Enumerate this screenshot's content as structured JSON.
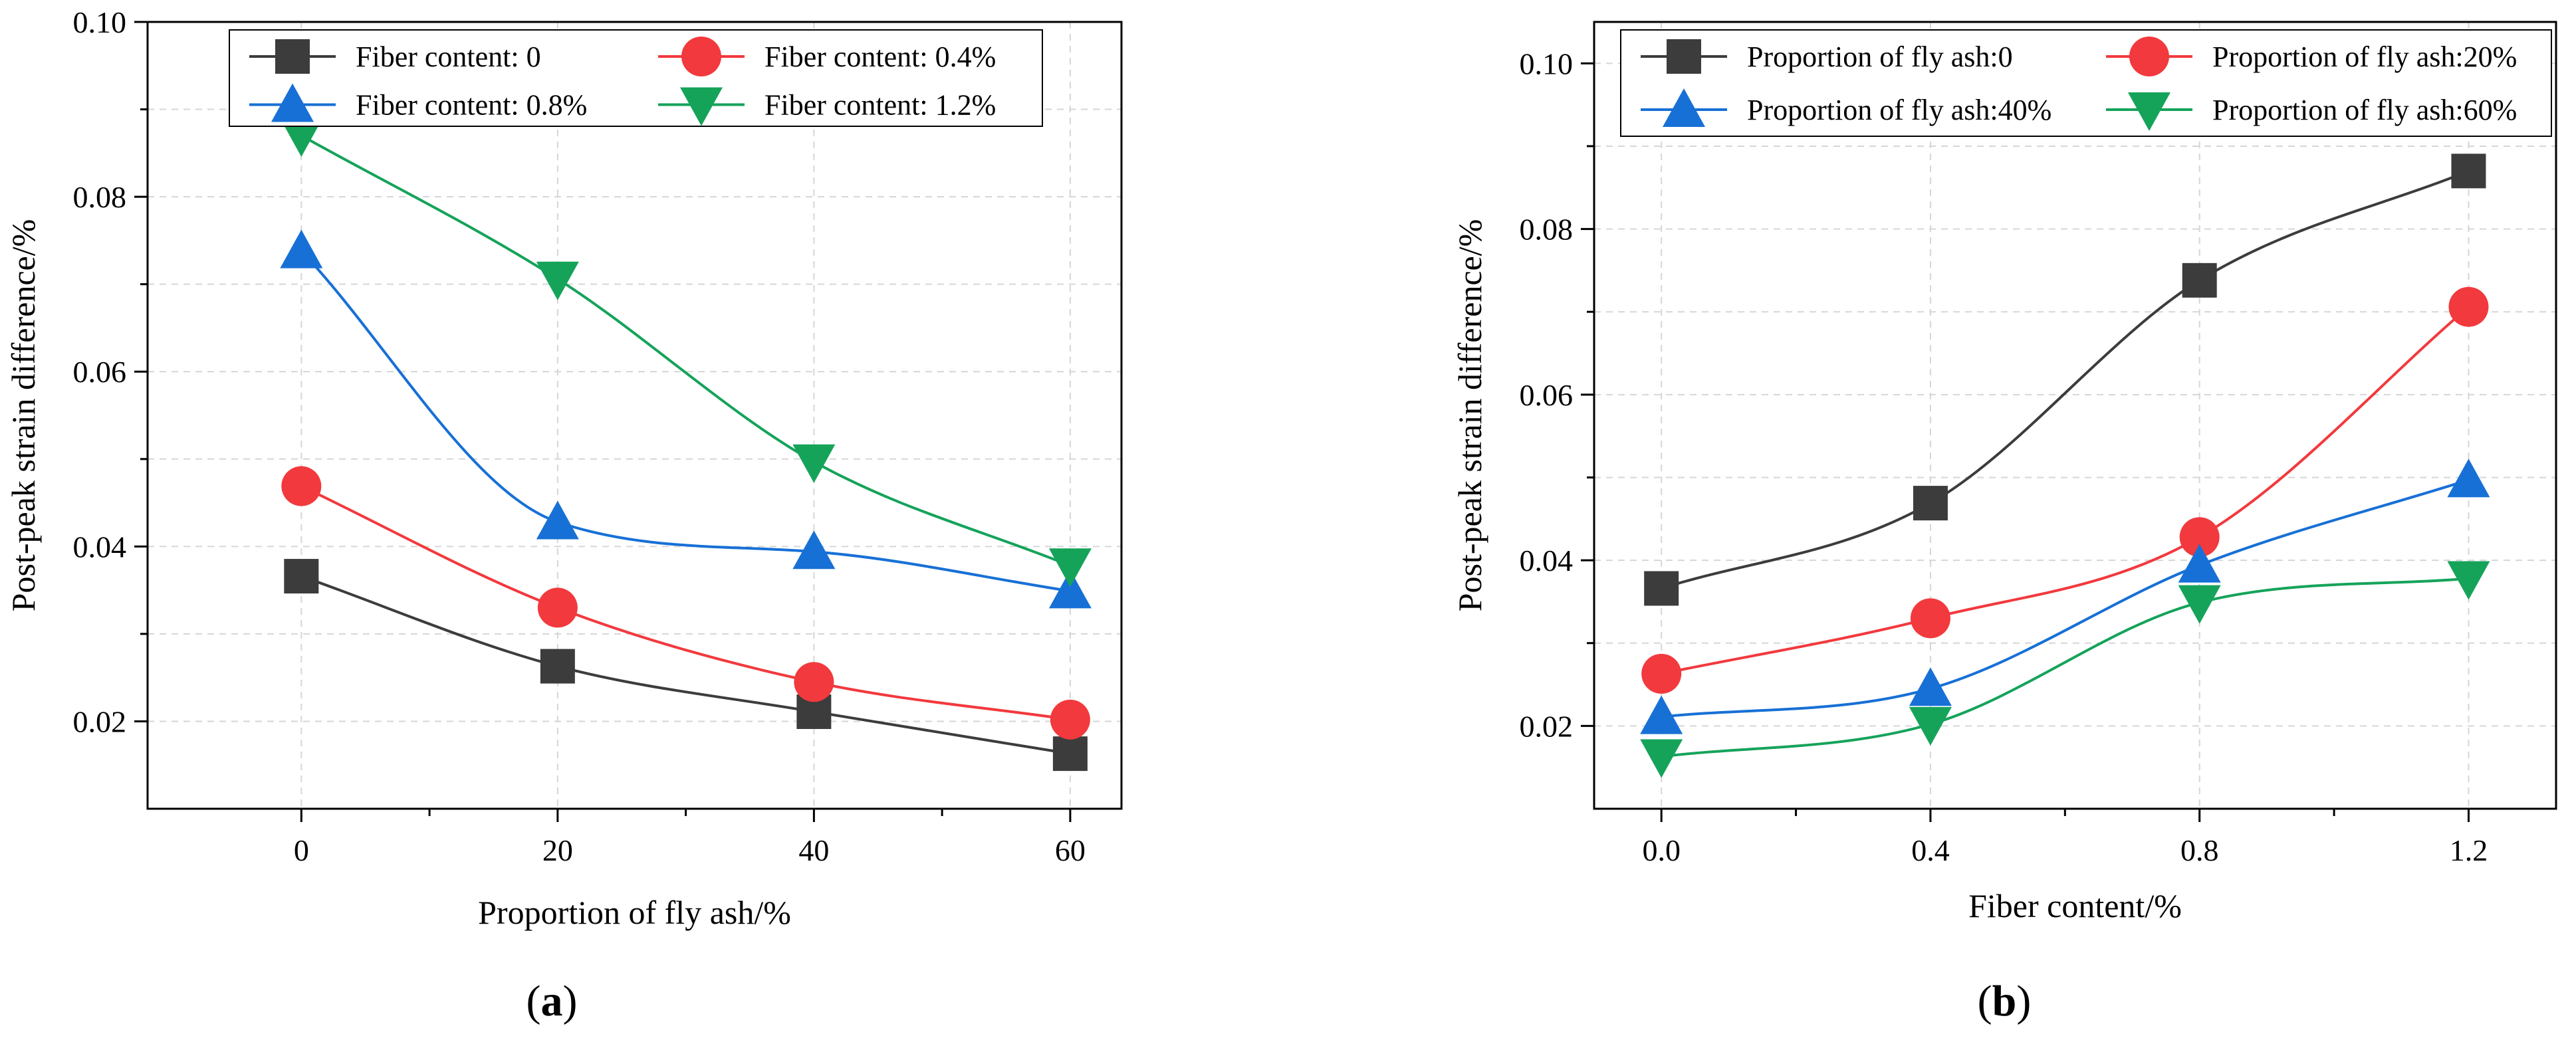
{
  "figure": {
    "caption_a": {
      "open": "(",
      "letter": "a",
      "close": ")"
    },
    "caption_b": {
      "open": "(",
      "letter": "b",
      "close": ")"
    }
  },
  "chart_data": [
    {
      "type": "line",
      "panel": "a",
      "xlabel": "Proportion of fly ash/%",
      "ylabel": "Post-peak strain difference/%",
      "x": [
        0,
        20,
        40,
        60
      ],
      "xlim": [
        -12,
        64
      ],
      "ylim": [
        0.01,
        0.1
      ],
      "xticks": [
        0,
        20,
        40,
        60
      ],
      "xtick_labels": [
        "0",
        "20",
        "40",
        "60"
      ],
      "yticks": [
        0.02,
        0.04,
        0.06,
        0.08,
        0.1
      ],
      "ytick_labels": [
        "0.02",
        "0.04",
        "0.06",
        "0.08",
        "0.10"
      ],
      "grid": true,
      "legend_position": "top",
      "series": [
        {
          "name": "Fiber content: 0",
          "color": "#3c3c3c",
          "marker": "square",
          "values": [
            0.0366,
            0.0263,
            0.0211,
            0.0163
          ]
        },
        {
          "name": "Fiber content: 0.4%",
          "color": "#f2393d",
          "marker": "circle",
          "values": [
            0.0469,
            0.033,
            0.0245,
            0.0202
          ]
        },
        {
          "name": "Fiber content: 0.8%",
          "color": "#1770d6",
          "marker": "triangle-up",
          "values": [
            0.0738,
            0.0428,
            0.0394,
            0.0349
          ]
        },
        {
          "name": "Fiber content: 1.2%",
          "color": "#15a35a",
          "marker": "triangle-down",
          "values": [
            0.087,
            0.0706,
            0.0497,
            0.0378
          ]
        }
      ]
    },
    {
      "type": "line",
      "panel": "b",
      "xlabel": "Fiber content/%",
      "ylabel": "Post-peak strain difference/%",
      "x": [
        0.0,
        0.4,
        0.8,
        1.2
      ],
      "xlim": [
        -0.1,
        1.33
      ],
      "ylim": [
        0.01,
        0.105
      ],
      "xticks": [
        0.0,
        0.4,
        0.8,
        1.2
      ],
      "xtick_labels": [
        "0.0",
        "0.4",
        "0.8",
        "1.2"
      ],
      "yticks": [
        0.02,
        0.04,
        0.06,
        0.08,
        0.1
      ],
      "ytick_labels": [
        "0.02",
        "0.04",
        "0.06",
        "0.08",
        "0.10"
      ],
      "grid": true,
      "legend_position": "top",
      "series": [
        {
          "name": "Proportion of fly ash:0",
          "color": "#3c3c3c",
          "marker": "square",
          "values": [
            0.0366,
            0.0469,
            0.0738,
            0.087
          ]
        },
        {
          "name": "Proportion of fly ash:20%",
          "color": "#f2393d",
          "marker": "circle",
          "values": [
            0.0263,
            0.033,
            0.0428,
            0.0706
          ]
        },
        {
          "name": "Proportion of fly ash:40%",
          "color": "#1770d6",
          "marker": "triangle-up",
          "values": [
            0.0211,
            0.0245,
            0.0394,
            0.0497
          ]
        },
        {
          "name": "Proportion of fly ash:60%",
          "color": "#15a35a",
          "marker": "triangle-down",
          "values": [
            0.0163,
            0.0202,
            0.0349,
            0.0378
          ]
        }
      ]
    }
  ]
}
